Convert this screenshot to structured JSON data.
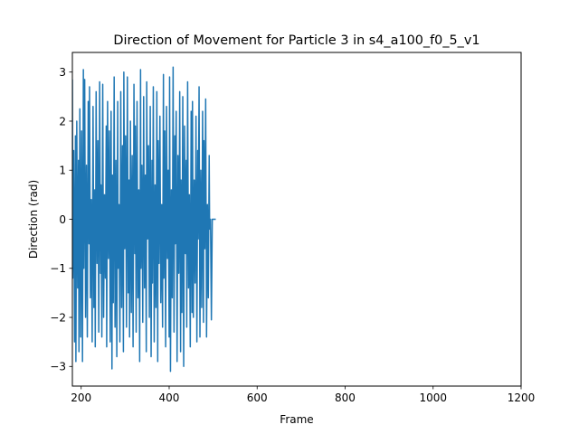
{
  "chart_data": {
    "type": "line",
    "title": "Direction of Movement for Particle 3 in s4_a100_f0_5_v1",
    "xlabel": "Frame",
    "ylabel": "Direction (rad)",
    "xlim": [
      180,
      1200
    ],
    "ylim": [
      -3.4,
      3.4
    ],
    "xticks": [
      200,
      400,
      600,
      800,
      1000,
      1200
    ],
    "yticks": [
      -3,
      -2,
      -1,
      0,
      1,
      2,
      3
    ],
    "grid": false,
    "series": [
      {
        "name": "",
        "color": "#1f77b4",
        "x": [
          180,
          181,
          183,
          185,
          187,
          188,
          190,
          192,
          194,
          195,
          197,
          199,
          201,
          203,
          205,
          206,
          208,
          210,
          212,
          214,
          216,
          218,
          219,
          221,
          223,
          225,
          227,
          229,
          231,
          232,
          234,
          236,
          238,
          240,
          242,
          244,
          245,
          247,
          249,
          251,
          253,
          255,
          257,
          258,
          260,
          262,
          264,
          266,
          268,
          270,
          271,
          273,
          275,
          277,
          279,
          281,
          283,
          284,
          286,
          288,
          290,
          292,
          294,
          296,
          297,
          299,
          301,
          303,
          305,
          307,
          309,
          310,
          312,
          314,
          316,
          318,
          320,
          322,
          323,
          325,
          327,
          329,
          331,
          333,
          335,
          336,
          338,
          340,
          342,
          344,
          346,
          348,
          349,
          351,
          353,
          355,
          357,
          359,
          361,
          362,
          364,
          366,
          368,
          370,
          372,
          374,
          375,
          377,
          379,
          381,
          383,
          385,
          387,
          388,
          390,
          392,
          394,
          396,
          398,
          400,
          401,
          403,
          405,
          407,
          409,
          411,
          413,
          414,
          416,
          418,
          420,
          422,
          424,
          426,
          427,
          429,
          431,
          433,
          435,
          437,
          439,
          440,
          442,
          444,
          446,
          448,
          450,
          452,
          453,
          455,
          457,
          459,
          461,
          463,
          465,
          466,
          468,
          470,
          472,
          474,
          476,
          478,
          479,
          481,
          483,
          485,
          487,
          489,
          491,
          492,
          494,
          496,
          498,
          500,
          502,
          504,
          506
        ],
        "y": [
          2.85,
          -1.2,
          1.4,
          -2.5,
          1.7,
          -2.9,
          2.0,
          -1.4,
          1.2,
          -2.7,
          2.25,
          -2.4,
          1.8,
          -2.9,
          3.05,
          -1.0,
          2.85,
          -2.0,
          1.1,
          -2.4,
          2.4,
          -0.5,
          2.7,
          -1.6,
          0.4,
          -2.5,
          2.3,
          -1.8,
          0.6,
          -2.6,
          2.6,
          -0.9,
          1.6,
          -2.3,
          2.8,
          -1.1,
          0.7,
          -2.4,
          2.75,
          -2.0,
          0.5,
          -1.2,
          1.9,
          -2.6,
          2.4,
          -0.8,
          1.8,
          -2.5,
          2.2,
          -3.05,
          0.9,
          -1.7,
          2.9,
          -2.2,
          1.2,
          -2.8,
          2.4,
          -1.0,
          0.3,
          -2.5,
          2.6,
          -1.8,
          1.5,
          -2.7,
          3.0,
          -0.6,
          1.7,
          -2.2,
          2.9,
          -1.5,
          0.8,
          -2.4,
          2.0,
          -1.9,
          1.3,
          -2.6,
          2.75,
          -0.7,
          1.9,
          -2.3,
          2.4,
          -1.6,
          0.6,
          -2.9,
          3.05,
          -1.0,
          1.1,
          -2.1,
          2.5,
          -1.4,
          0.9,
          -2.7,
          2.8,
          -0.4,
          1.5,
          -2.0,
          2.3,
          -2.8,
          1.2,
          -1.3,
          2.7,
          -2.5,
          0.7,
          -1.8,
          2.6,
          -2.9,
          1.6,
          -0.9,
          2.1,
          -1.7,
          0.3,
          -2.2,
          2.95,
          -1.2,
          1.8,
          -2.6,
          2.3,
          -0.8,
          1.0,
          -2.4,
          2.9,
          -3.1,
          0.6,
          -1.6,
          3.1,
          -2.3,
          1.7,
          -0.5,
          2.2,
          -2.9,
          1.3,
          -1.1,
          2.6,
          -2.7,
          0.8,
          -1.9,
          2.5,
          -3.0,
          1.9,
          -0.7,
          1.2,
          -2.2,
          2.8,
          -1.4,
          0.5,
          -2.6,
          2.2,
          -1.9,
          2.4,
          -2.0,
          0.8,
          -1.3,
          2.1,
          -2.5,
          1.4,
          -0.4,
          2.7,
          -2.4,
          1.0,
          -1.8,
          2.2,
          -2.1,
          1.6,
          -0.6,
          2.45,
          -2.4,
          0.3,
          -1.6,
          1.3,
          -0.2,
          0.0,
          -2.05,
          0.0,
          0.0,
          0.0,
          0.0,
          0.0
        ]
      }
    ]
  }
}
